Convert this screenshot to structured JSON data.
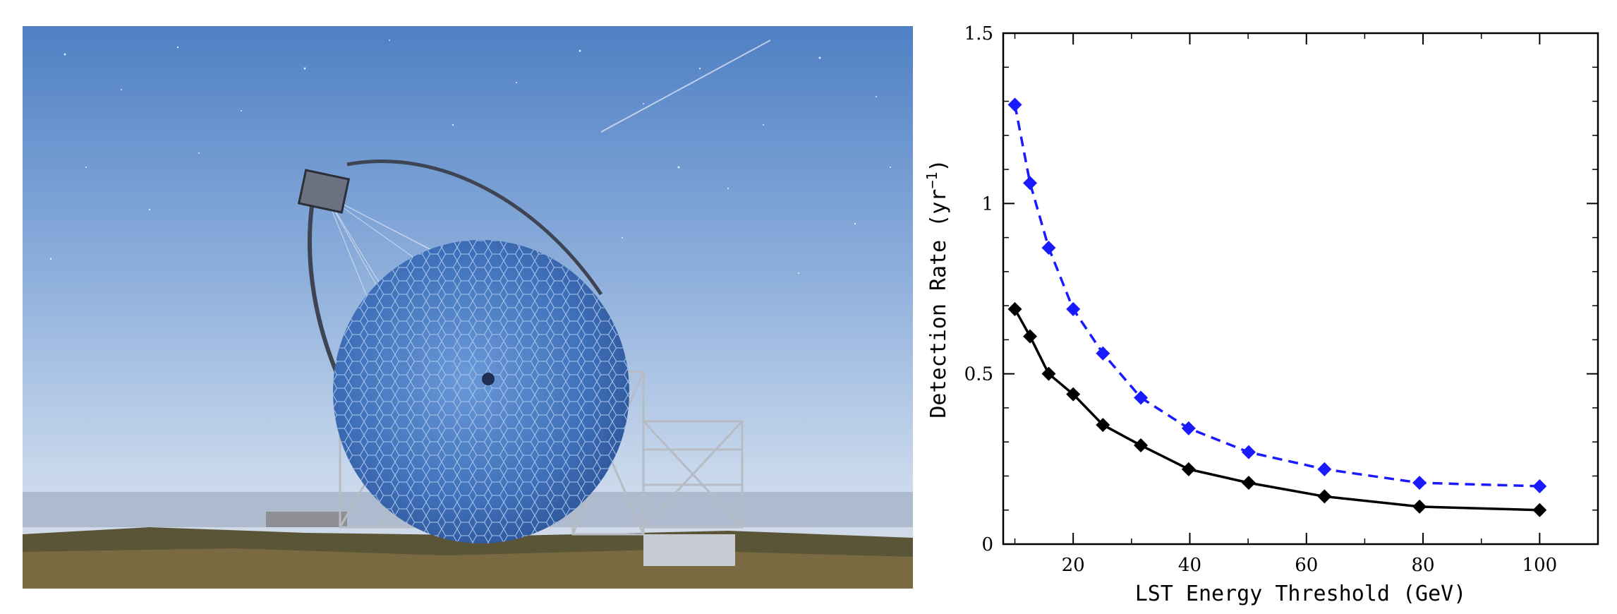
{
  "photo": {
    "subject": "telescope-photo"
  },
  "chart_data": {
    "type": "line",
    "xlabel": "LST Energy Threshold (GeV)",
    "ylabel_main": "Detection Rate (yr",
    "ylabel_sup": "−1",
    "ylabel_close": ")",
    "xlim": [
      8,
      110
    ],
    "ylim": [
      0,
      1.5
    ],
    "xticks": [
      20,
      40,
      60,
      80,
      100
    ],
    "xtick_labels": [
      "20",
      "40",
      "60",
      "80",
      "100"
    ],
    "yticks": [
      0,
      0.5,
      1,
      1.5
    ],
    "ytick_labels": [
      "0",
      "0.5",
      "1",
      "1.5"
    ],
    "grid": false,
    "series": [
      {
        "color": "#1a1aff",
        "line_style": "dashed",
        "marker": "diamond",
        "x": [
          10,
          12.6,
          15.8,
          20,
          25.1,
          31.6,
          39.8,
          50.1,
          63.1,
          79.4,
          100
        ],
        "y": [
          1.29,
          1.06,
          0.87,
          0.69,
          0.56,
          0.43,
          0.34,
          0.27,
          0.22,
          0.18,
          0.17
        ]
      },
      {
        "color": "#000000",
        "line_style": "solid",
        "marker": "diamond",
        "x": [
          10,
          12.6,
          15.8,
          20,
          25.1,
          31.6,
          39.8,
          50.1,
          63.1,
          79.4,
          100
        ],
        "y": [
          0.69,
          0.61,
          0.5,
          0.44,
          0.35,
          0.29,
          0.22,
          0.18,
          0.14,
          0.11,
          0.1
        ]
      }
    ]
  }
}
